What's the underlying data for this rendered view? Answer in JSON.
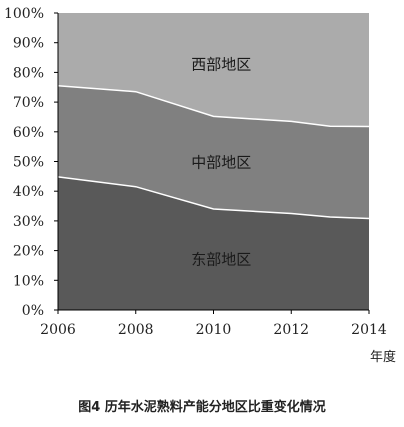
{
  "chart_data": {
    "type": "area",
    "stacked": true,
    "x": [
      2006,
      2008,
      2010,
      2012,
      2013,
      2014
    ],
    "series": [
      {
        "name": "东部地区",
        "values": [
          44.8,
          41.5,
          34.0,
          32.5,
          31.3,
          30.8
        ],
        "color": "#595959"
      },
      {
        "name": "中部地区",
        "values": [
          30.7,
          32.0,
          31.2,
          31.0,
          30.6,
          31.0
        ],
        "color": "#808080"
      },
      {
        "name": "西部地区",
        "values": [
          24.5,
          26.5,
          34.8,
          36.5,
          38.1,
          38.2
        ],
        "color": "#ababab"
      }
    ],
    "xlim": [
      2006,
      2014
    ],
    "ylim": [
      0,
      100
    ],
    "xticks": [
      "2006",
      "2008",
      "2010",
      "2012",
      "2014"
    ],
    "yticks": [
      "0%",
      "10%",
      "20%",
      "30%",
      "40%",
      "50%",
      "60%",
      "70%",
      "80%",
      "90%",
      "100%"
    ],
    "xlabel": "年度",
    "grid": false,
    "legend": "none"
  },
  "caption": "图4  历年水泥熟料产能分地区比重变化情况"
}
